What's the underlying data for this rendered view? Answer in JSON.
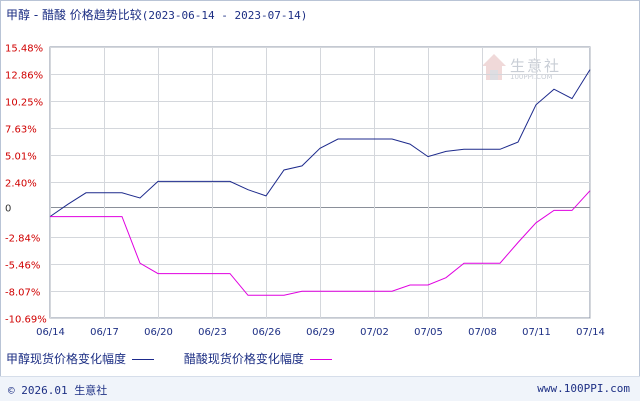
{
  "title": {
    "main": "甲醇 - 醋酸 价格趋势比较",
    "range": "(2023-06-14 - 2023-07-14)"
  },
  "watermark": {
    "name": "生意社",
    "url": "100PPI.COM"
  },
  "legend": [
    {
      "label": "甲醇现货价格变化幅度",
      "color": "#1d2a8c"
    },
    {
      "label": "醋酸现货价格变化幅度",
      "color": "#e000e0"
    }
  ],
  "footer": {
    "left": "© 2026.01 生意社",
    "right": "www.100PPI.com"
  },
  "chart_data": {
    "type": "line",
    "title": "甲醇 - 醋酸 价格趋势比较",
    "subtitle": "(2023-06-14 - 2023-07-14)",
    "xlabel": "",
    "ylabel": "",
    "ylim": [
      -10.69,
      15.48
    ],
    "grid": true,
    "legend_placement": "bottom",
    "y_ticks": [
      "15.48%",
      "12.86%",
      "10.25%",
      "7.63%",
      "5.01%",
      "2.40%",
      "0",
      "-2.84%",
      "-5.46%",
      "-8.07%",
      "-10.69%"
    ],
    "y_tick_values": [
      15.48,
      12.86,
      10.25,
      7.63,
      5.01,
      2.4,
      0,
      -2.84,
      -5.46,
      -8.07,
      -10.69
    ],
    "x_ticks": [
      "06/14",
      "06/17",
      "06/20",
      "06/23",
      "06/26",
      "06/29",
      "07/02",
      "07/05",
      "07/08",
      "07/11",
      "07/14"
    ],
    "x": [
      "06/14",
      "06/15",
      "06/16",
      "06/17",
      "06/18",
      "06/19",
      "06/20",
      "06/21",
      "06/22",
      "06/23",
      "06/24",
      "06/25",
      "06/26",
      "06/27",
      "06/28",
      "06/29",
      "06/30",
      "07/01",
      "07/02",
      "07/03",
      "07/04",
      "07/05",
      "07/06",
      "07/07",
      "07/08",
      "07/09",
      "07/10",
      "07/11",
      "07/12",
      "07/13",
      "07/14"
    ],
    "series": [
      {
        "name": "甲醇现货价格变化幅度",
        "color": "#1d2a8c",
        "values": [
          -0.9,
          0.3,
          1.4,
          1.4,
          1.4,
          0.9,
          2.5,
          2.5,
          2.5,
          2.5,
          2.5,
          1.7,
          1.1,
          3.6,
          4.0,
          5.7,
          6.6,
          6.6,
          6.6,
          6.6,
          6.1,
          4.9,
          5.4,
          5.6,
          5.6,
          5.6,
          6.3,
          9.9,
          11.4,
          10.5,
          13.3
        ]
      },
      {
        "name": "醋酸现货价格变化幅度",
        "color": "#e000e0",
        "values": [
          -0.9,
          -0.9,
          -0.9,
          -0.9,
          -0.9,
          -5.4,
          -6.4,
          -6.4,
          -6.4,
          -6.4,
          -6.4,
          -8.5,
          -8.5,
          -8.5,
          -8.1,
          -8.1,
          -8.1,
          -8.1,
          -8.1,
          -8.1,
          -7.5,
          -7.5,
          -6.8,
          -5.4,
          -5.4,
          -5.4,
          -3.4,
          -1.5,
          -0.3,
          -0.3,
          1.6
        ]
      }
    ]
  }
}
